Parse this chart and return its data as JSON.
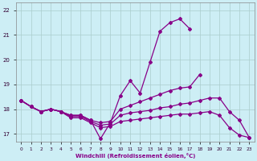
{
  "xlabel": "Windchill (Refroidissement éolien,°C)",
  "bg_color": "#cdeef5",
  "line_color": "#880088",
  "grid_color": "#aacccc",
  "xlim": [
    -0.5,
    23.5
  ],
  "ylim": [
    16.7,
    22.3
  ],
  "xticks": [
    0,
    1,
    2,
    3,
    4,
    5,
    6,
    7,
    8,
    9,
    10,
    11,
    12,
    13,
    14,
    15,
    16,
    17,
    18,
    19,
    20,
    21,
    22,
    23
  ],
  "yticks": [
    17,
    18,
    19,
    20,
    21,
    22
  ],
  "line1_y": [
    18.35,
    18.1,
    17.9,
    18.0,
    17.9,
    17.75,
    17.75,
    17.55,
    16.8,
    17.45,
    18.55,
    19.15,
    18.65,
    19.9,
    21.15,
    21.5,
    21.65,
    21.25,
    null,
    null,
    null,
    null,
    null,
    null
  ],
  "line2_y": [
    18.35,
    18.1,
    17.9,
    18.0,
    17.9,
    17.75,
    17.75,
    17.55,
    17.45,
    17.5,
    18.0,
    18.15,
    18.3,
    18.45,
    18.6,
    18.75,
    18.85,
    18.9,
    19.4,
    null,
    null,
    null,
    null,
    null
  ],
  "line3_y": [
    18.35,
    18.1,
    17.9,
    18.0,
    17.9,
    17.7,
    17.7,
    17.5,
    17.35,
    17.4,
    17.75,
    17.85,
    17.9,
    17.95,
    18.05,
    18.1,
    18.2,
    18.25,
    18.35,
    18.45,
    18.45,
    17.9,
    17.55,
    16.85
  ],
  "line4_y": [
    18.35,
    18.1,
    17.9,
    18.0,
    17.9,
    17.65,
    17.65,
    17.45,
    17.25,
    17.3,
    17.5,
    17.55,
    17.6,
    17.65,
    17.7,
    17.75,
    17.8,
    17.8,
    17.85,
    17.9,
    17.75,
    17.25,
    16.95,
    16.85
  ]
}
